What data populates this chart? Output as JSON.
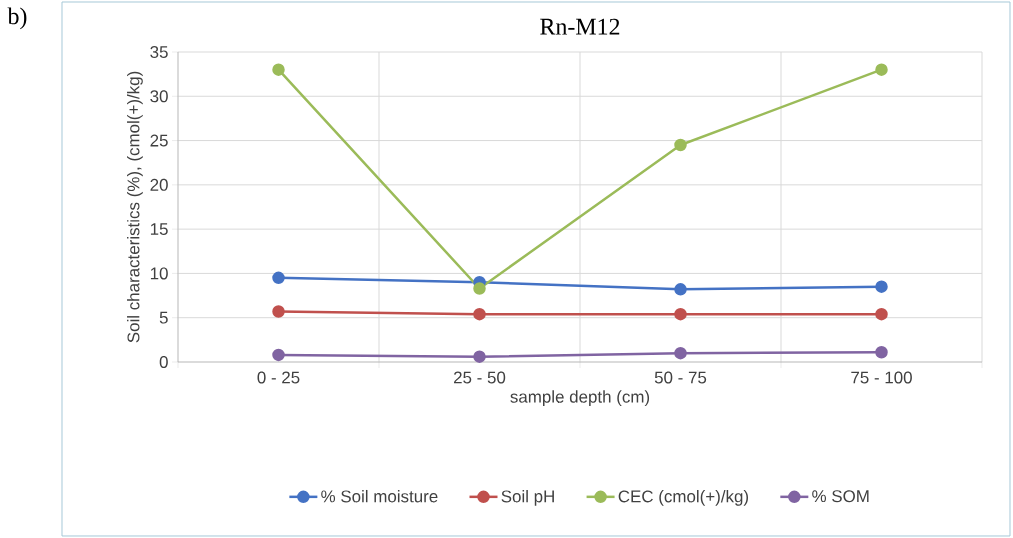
{
  "chart_data": {
    "type": "line",
    "title": "Rn-M12",
    "xlabel": "sample depth (cm)",
    "ylabel": "Soil characteristics (%), (cmol(+)/kg)",
    "categories": [
      "0 - 25",
      "25 - 50",
      "50 - 75",
      "75 - 100"
    ],
    "series": [
      {
        "name": "% Soil moisture",
        "color": "#4472c4",
        "values": [
          9.5,
          9.0,
          8.2,
          8.5
        ]
      },
      {
        "name": "Soil pH",
        "color": "#c0504d",
        "values": [
          5.7,
          5.4,
          5.4,
          5.4
        ]
      },
      {
        "name": "CEC (cmol(+)/kg)",
        "color": "#9bbb59",
        "values": [
          33,
          8.3,
          24.5,
          33
        ]
      },
      {
        "name": "% SOM",
        "color": "#8064a2",
        "values": [
          0.8,
          0.6,
          1.0,
          1.1
        ]
      }
    ],
    "ylim": [
      0,
      35
    ],
    "yticks": [
      0,
      5,
      10,
      15,
      20,
      25,
      30,
      35
    ],
    "grid": true,
    "legend": "bottom",
    "marker": "circle",
    "line_style": "solid",
    "annotations": [
      "b)"
    ]
  }
}
